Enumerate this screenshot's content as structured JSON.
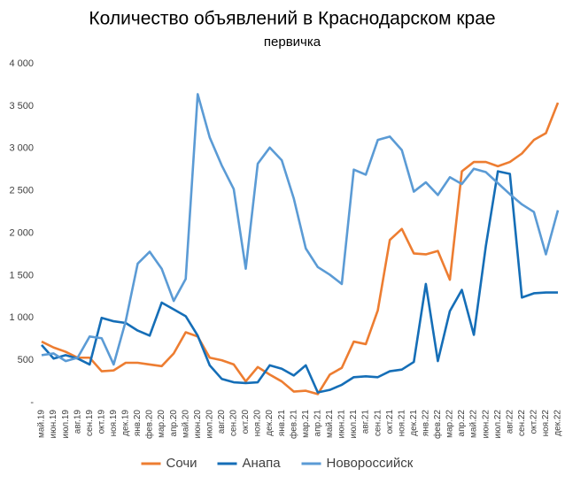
{
  "chart_data": {
    "type": "line",
    "title": "Количество объявлений в Краснодарском крае",
    "subtitle": "первичка",
    "categories": [
      "май.19",
      "июн.19",
      "июл.19",
      "авг.19",
      "сен.19",
      "окт.19",
      "ноя.19",
      "дек.19",
      "янв.20",
      "фев.20",
      "мар.20",
      "апр.20",
      "май.20",
      "июн.20",
      "июл.20",
      "авг.20",
      "сен.20",
      "окт.20",
      "ноя.20",
      "дек.20",
      "янв.21",
      "фев.21",
      "мар.21",
      "апр.21",
      "май.21",
      "июн.21",
      "июл.21",
      "авг.21",
      "сен.21",
      "окт.21",
      "ноя.21",
      "дек.21",
      "янв.22",
      "фев.22",
      "мар.22",
      "апр.22",
      "май.22",
      "июн.22",
      "июл.22",
      "авг.22",
      "сен.22",
      "окт.22",
      "ноя.22",
      "дек.22"
    ],
    "series": [
      {
        "name": "Сочи",
        "color": "#ED7D31",
        "values": [
          720,
          650,
          600,
          530,
          530,
          370,
          380,
          470,
          470,
          450,
          430,
          580,
          830,
          780,
          530,
          500,
          450,
          250,
          420,
          330,
          250,
          130,
          140,
          100,
          330,
          410,
          720,
          690,
          1090,
          1920,
          2050,
          1760,
          1750,
          1790,
          1450,
          2730,
          2840,
          2840,
          2790,
          2840,
          2940,
          3100,
          3180,
          3540
        ]
      },
      {
        "name": "Анапа",
        "color": "#156EB7",
        "values": [
          680,
          520,
          560,
          520,
          450,
          1000,
          960,
          940,
          850,
          790,
          1180,
          1100,
          1020,
          790,
          440,
          280,
          240,
          230,
          240,
          440,
          400,
          320,
          440,
          120,
          150,
          210,
          300,
          310,
          300,
          370,
          390,
          480,
          1400,
          490,
          1080,
          1330,
          800,
          1850,
          2730,
          2700,
          1240,
          1290,
          1300,
          1300
        ]
      },
      {
        "name": "Новороссийск",
        "color": "#5B9BD5",
        "values": [
          560,
          580,
          490,
          530,
          780,
          760,
          450,
          960,
          1640,
          1780,
          1580,
          1200,
          1460,
          3640,
          3130,
          2800,
          2520,
          1580,
          2820,
          3010,
          2860,
          2410,
          1820,
          1600,
          1510,
          1400,
          2750,
          2690,
          3100,
          3140,
          2980,
          2490,
          2600,
          2450,
          2660,
          2580,
          2760,
          2720,
          2590,
          2460,
          2340,
          2250,
          1750,
          2270
        ]
      }
    ],
    "ylim": [
      0,
      4000
    ],
    "yticks": [
      {
        "value": 0,
        "label": "-"
      },
      {
        "value": 500,
        "label": "500"
      },
      {
        "value": 1000,
        "label": "1 000"
      },
      {
        "value": 1500,
        "label": "1 500"
      },
      {
        "value": 2000,
        "label": "2 000"
      },
      {
        "value": 2500,
        "label": "2 500"
      },
      {
        "value": 3000,
        "label": "3 000"
      },
      {
        "value": 3500,
        "label": "3 500"
      },
      {
        "value": 4000,
        "label": "4 000"
      }
    ],
    "grid": false,
    "legend": "bottom"
  }
}
